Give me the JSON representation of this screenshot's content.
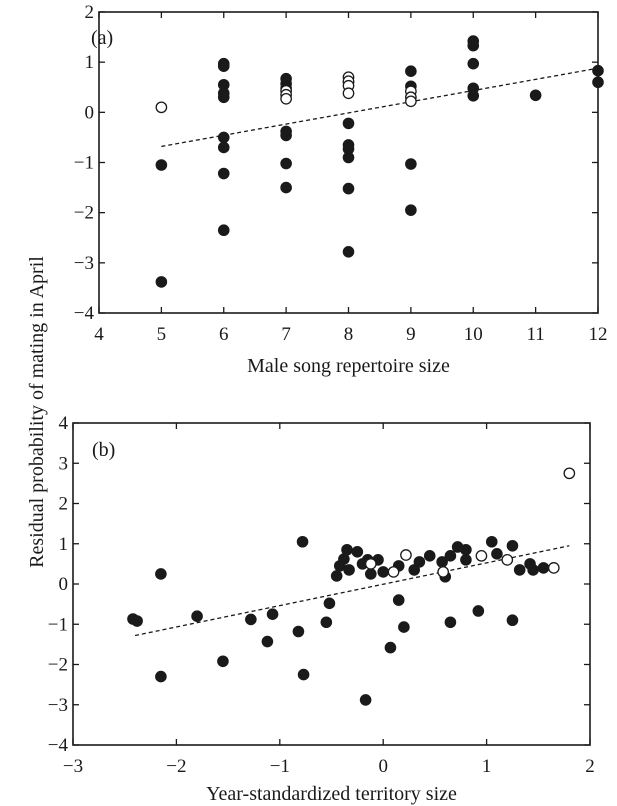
{
  "figure": {
    "shared_ylabel": "Residual probability of mating in April"
  },
  "chart_data": [
    {
      "type": "scatter",
      "panel_label": "(a)",
      "title": "",
      "xlabel": "Male song repertoire size",
      "ylabel": "Residual probability of mating in April",
      "xlim": [
        4,
        12
      ],
      "ylim": [
        -4,
        2
      ],
      "xticks": [
        "4",
        "5",
        "6",
        "7",
        "8",
        "9",
        "10",
        "11",
        "12"
      ],
      "yticks": [
        "2",
        "1",
        "0",
        "−1",
        "−2",
        "−3",
        "−4"
      ],
      "grid": false,
      "legend": "none",
      "series": [
        {
          "marker": "filled-circle",
          "points": [
            [
              5,
              -1.05
            ],
            [
              5,
              -3.38
            ],
            [
              6,
              0.97
            ],
            [
              6,
              0.92
            ],
            [
              6,
              0.55
            ],
            [
              6,
              0.38
            ],
            [
              6,
              0.3
            ],
            [
              6,
              -0.5
            ],
            [
              6,
              -0.7
            ],
            [
              6,
              -1.22
            ],
            [
              6,
              -2.35
            ],
            [
              7,
              0.67
            ],
            [
              7,
              0.57
            ],
            [
              7,
              0.48
            ],
            [
              7,
              -0.38
            ],
            [
              7,
              -0.46
            ],
            [
              7,
              -1.02
            ],
            [
              7,
              -1.5
            ],
            [
              8,
              0.6
            ],
            [
              8,
              -0.22
            ],
            [
              8,
              -0.65
            ],
            [
              8,
              -0.73
            ],
            [
              8,
              -0.9
            ],
            [
              8,
              -1.52
            ],
            [
              8,
              -2.78
            ],
            [
              9,
              0.82
            ],
            [
              9,
              0.52
            ],
            [
              9,
              -1.03
            ],
            [
              9,
              -1.95
            ],
            [
              10,
              1.42
            ],
            [
              10,
              1.33
            ],
            [
              10,
              0.97
            ],
            [
              10,
              0.48
            ],
            [
              10,
              0.33
            ],
            [
              11,
              0.34
            ],
            [
              12,
              0.83
            ],
            [
              12,
              0.6
            ]
          ]
        },
        {
          "marker": "open-circle",
          "points": [
            [
              5,
              0.1
            ],
            [
              7,
              0.43
            ],
            [
              7,
              0.35
            ],
            [
              7,
              0.27
            ],
            [
              8,
              0.7
            ],
            [
              8,
              0.62
            ],
            [
              8,
              0.53
            ],
            [
              8,
              0.38
            ],
            [
              9,
              0.42
            ],
            [
              9,
              0.3
            ],
            [
              9,
              0.22
            ]
          ]
        }
      ],
      "fit_line": {
        "style": "dashed",
        "x": [
          5,
          12
        ],
        "y": [
          -0.68,
          0.88
        ]
      }
    },
    {
      "type": "scatter",
      "panel_label": "(b)",
      "title": "",
      "xlabel": "Year-standardized territory size",
      "ylabel": "Residual probability of mating in April",
      "xlim": [
        -3,
        2
      ],
      "ylim": [
        -4,
        4
      ],
      "xticks": [
        "−3",
        "−2",
        "−1",
        "0",
        "1",
        "2"
      ],
      "yticks": [
        "4",
        "3",
        "2",
        "1",
        "0",
        "−1",
        "−2",
        "−3",
        "−4"
      ],
      "grid": false,
      "legend": "none",
      "series": [
        {
          "marker": "filled-circle",
          "points": [
            [
              -2.42,
              -0.87
            ],
            [
              -2.38,
              -0.92
            ],
            [
              -2.15,
              0.25
            ],
            [
              -2.15,
              -2.3
            ],
            [
              -1.8,
              -0.8
            ],
            [
              -1.55,
              -1.92
            ],
            [
              -1.28,
              -0.88
            ],
            [
              -1.12,
              -1.43
            ],
            [
              -1.07,
              -0.75
            ],
            [
              -0.82,
              -1.18
            ],
            [
              -0.78,
              1.05
            ],
            [
              -0.77,
              -2.25
            ],
            [
              -0.55,
              -0.95
            ],
            [
              -0.52,
              -0.48
            ],
            [
              -0.45,
              0.2
            ],
            [
              -0.42,
              0.45
            ],
            [
              -0.38,
              0.62
            ],
            [
              -0.35,
              0.85
            ],
            [
              -0.33,
              0.35
            ],
            [
              -0.25,
              0.8
            ],
            [
              -0.2,
              0.5
            ],
            [
              -0.17,
              -2.88
            ],
            [
              -0.15,
              0.6
            ],
            [
              -0.12,
              0.25
            ],
            [
              -0.05,
              0.6
            ],
            [
              0.0,
              0.3
            ],
            [
              0.07,
              -1.58
            ],
            [
              0.15,
              0.45
            ],
            [
              0.15,
              -0.4
            ],
            [
              0.2,
              -1.07
            ],
            [
              0.3,
              0.35
            ],
            [
              0.35,
              0.55
            ],
            [
              0.45,
              0.7
            ],
            [
              0.57,
              0.55
            ],
            [
              0.6,
              0.18
            ],
            [
              0.65,
              0.7
            ],
            [
              0.65,
              -0.95
            ],
            [
              0.72,
              0.92
            ],
            [
              0.8,
              0.85
            ],
            [
              0.8,
              0.6
            ],
            [
              0.92,
              -0.67
            ],
            [
              1.05,
              1.05
            ],
            [
              1.1,
              0.75
            ],
            [
              1.25,
              0.95
            ],
            [
              1.25,
              -0.9
            ],
            [
              1.32,
              0.35
            ],
            [
              1.42,
              0.5
            ],
            [
              1.45,
              0.35
            ],
            [
              1.55,
              0.4
            ]
          ]
        },
        {
          "marker": "open-circle",
          "points": [
            [
              -0.12,
              0.5
            ],
            [
              0.1,
              0.3
            ],
            [
              0.22,
              0.72
            ],
            [
              0.58,
              0.3
            ],
            [
              0.95,
              0.7
            ],
            [
              1.2,
              0.6
            ],
            [
              1.65,
              0.4
            ],
            [
              1.8,
              2.75
            ]
          ]
        }
      ],
      "fit_line": {
        "style": "dashed",
        "x": [
          -2.4,
          1.8
        ],
        "y": [
          -1.28,
          0.95
        ]
      }
    }
  ]
}
